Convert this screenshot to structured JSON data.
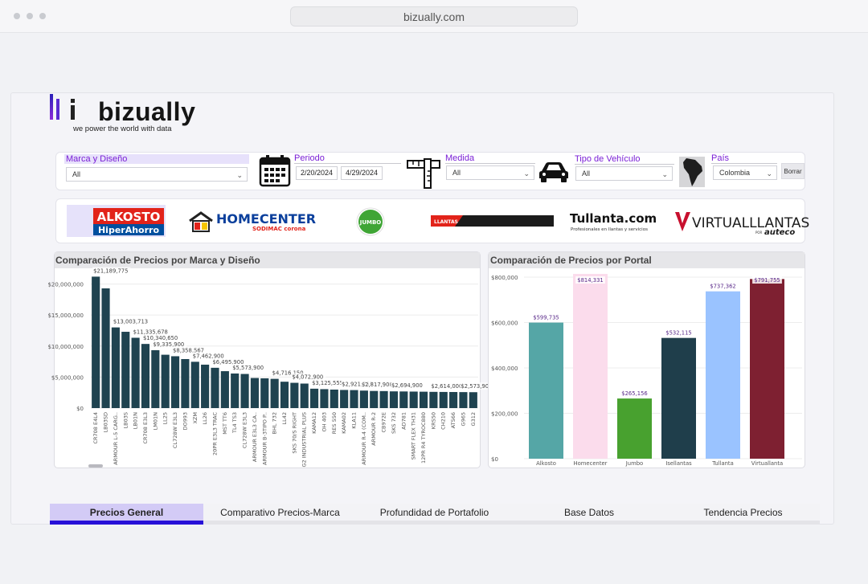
{
  "browser": {
    "url": "bizually.com"
  },
  "logo": {
    "name": "bizually",
    "tagline": "we power the world with data"
  },
  "filters": {
    "marca": {
      "label": "Marca y Diseño",
      "value": "All"
    },
    "periodo": {
      "label": "Periodo",
      "start": "2/20/2024",
      "end": "4/29/2024"
    },
    "medida": {
      "label": "Medida",
      "value": "All"
    },
    "tipo": {
      "label": "Tipo de Vehículo",
      "value": "All"
    },
    "pais": {
      "label": "País",
      "value": "Colombia"
    },
    "clear_button": "Borrar"
  },
  "portals": {
    "alkosto": {
      "line1": "ALKOSTO",
      "line2": "HiperAhorro"
    },
    "homecenter": {
      "line1": "HOMECENTER",
      "line2": "SODIMAC corona"
    },
    "jumbo": {
      "text": "JUMBO"
    },
    "llantas": {
      "text": "LLANTAS"
    },
    "tullanta": {
      "line1": "Tullanta.com",
      "line2": "Profesionales en llantas y servicios"
    },
    "virtual": {
      "line1": "VIRTUALLLANTAS",
      "line2": "POR",
      "line3": "auteco"
    }
  },
  "colors": {
    "brand_chart_bar": "#1f4350",
    "alkosto": "#55a6a6",
    "homecenter": "#fbdcec",
    "jumbo": "#48a12f",
    "isellantas": "#1f3e4b",
    "tullanta": "#9ac3ff",
    "virtualllanta": "#7e2031",
    "tab_accent": "#2710d8"
  },
  "chart_data": [
    {
      "type": "bar",
      "title": "Comparación de Precios por Marca y Diseño",
      "categories": [
        "CR708 E4L4",
        "LB03SD",
        "ARMOUR L-5 CARG..",
        "LB03S",
        "LB01N",
        "CR708 E3L3",
        "LM01N",
        "LL25",
        "CL728W E3L3",
        "DO993",
        "XZM",
        "LL26",
        "20PR E3L3 TRAC",
        "MST TT6",
        "TL4 TS3",
        "CL728W E3L3",
        "ARMOUR E3L3 CA..",
        "ARMOUR B-3TIPO P..",
        "BHL 732",
        "LL42",
        "SKS 70/S RIGHT",
        "G2 INDUSTRIAL PLUS",
        "KAMA12",
        "OH 403",
        "RES 550",
        "KAMA02",
        "KLA11",
        "ARMOUR R-4 (COM..",
        "ARMOUR R-2",
        "CB972E",
        "SKS 732",
        "AD781",
        "SMART FLEX TH31",
        "12PR R4 TYROC880",
        "KRS50",
        "CH210",
        "AT566",
        "G965",
        "G312"
      ],
      "values": [
        21189775,
        19300000,
        13003713,
        12300000,
        11335678,
        10340650,
        9335900,
        8600000,
        8358567,
        7900000,
        7462900,
        7000000,
        6495900,
        5950000,
        5573900,
        5500000,
        4850000,
        4800000,
        4716150,
        4250000,
        4072900,
        3950000,
        3125555,
        3050000,
        2980000,
        2921757,
        2900000,
        2817900,
        2760000,
        2740000,
        2694900,
        2680000,
        2660000,
        2640000,
        2614000,
        2600000,
        2590000,
        2573900,
        2560000
      ],
      "data_labels": {
        "0": "$21,189,775",
        "2": "$13,003,713",
        "4": "$11,335,678",
        "5": "$10,340,650",
        "6": "$9,335,900",
        "8": "$8,358,567",
        "10": "$7,462,900",
        "12": "$6,495,900",
        "14": "$5,573,900",
        "18": "$4,716,150",
        "20": "$4,072,900",
        "22": "$3,125,555",
        "25": "$2,921,757",
        "27": "$2,817,900",
        "30": "$2,694,900",
        "34": "$2,614,000",
        "37": "$2,573,900"
      },
      "ylim": [
        0,
        21500000
      ],
      "yticks": [
        0,
        5000000,
        10000000,
        15000000,
        20000000
      ],
      "ytick_labels": [
        "$0",
        "$5,000,000",
        "$10,000,000",
        "$15,000,000",
        "$20,000,000"
      ],
      "grid": true
    },
    {
      "type": "bar",
      "title": "Comparación de Precios por Portal",
      "categories": [
        "Alkosto",
        "Homecenter",
        "Jumbo",
        "Isellantas",
        "Tullanta",
        "Virtuallanta"
      ],
      "values": [
        599735,
        814331,
        265156,
        532115,
        737362,
        791755
      ],
      "data_labels": [
        "$599,735",
        "$814,331",
        "$265,156",
        "$532,115",
        "$737,362",
        "$791,755"
      ],
      "colors": [
        "#55a6a6",
        "#fbdcec",
        "#48a12f",
        "#1f3e4b",
        "#9ac3ff",
        "#7e2031"
      ],
      "ylim": [
        0,
        800000
      ],
      "yticks": [
        0,
        200000,
        400000,
        600000,
        800000
      ],
      "ytick_labels": [
        "$0",
        "$200,000",
        "$400,000",
        "$600,000",
        "$800,000"
      ],
      "grid": true
    }
  ],
  "tabs": [
    {
      "label": "Precios General",
      "active": true
    },
    {
      "label": "Comparativo Precios-Marca",
      "active": false
    },
    {
      "label": "Profundidad de Portafolio",
      "active": false
    },
    {
      "label": "Base Datos",
      "active": false
    },
    {
      "label": "Tendencia Precios",
      "active": false
    }
  ]
}
